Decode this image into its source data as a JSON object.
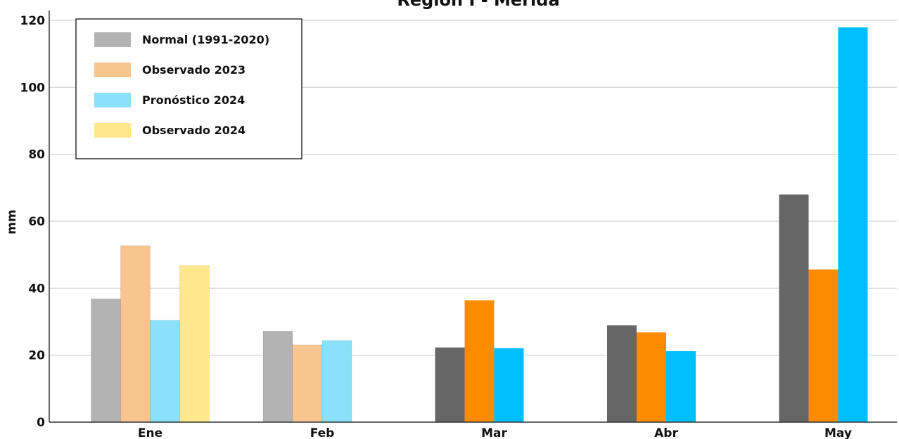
{
  "chart_data": {
    "type": "bar",
    "title": "Región I - Mérida",
    "ylabel": "mm",
    "xlabel": "",
    "ylim": [
      0,
      120
    ],
    "yticks": [
      0,
      20,
      40,
      60,
      80,
      100,
      120
    ],
    "grid": "horizontal",
    "legend_position": "top-left",
    "categories": [
      "Ene",
      "Feb",
      "Mar",
      "Abr",
      "May"
    ],
    "series": [
      {
        "name": "Normal (1991-2020)",
        "values": [
          36.8,
          27.2,
          22.3,
          28.9,
          68.0
        ],
        "color": "#666666",
        "legend_color": "#b3b3b3"
      },
      {
        "name": "Observado 2023",
        "values": [
          52.7,
          23.1,
          36.4,
          26.8,
          45.6
        ],
        "color": "#ff8c00",
        "legend_color": "#f9c58e"
      },
      {
        "name": "Pronóstico 2024",
        "values": [
          30.4,
          24.4,
          22.1,
          21.2,
          117.9
        ],
        "color": "#00bfff",
        "legend_color": "#8be0fa"
      },
      {
        "name": "Observado 2024",
        "values": [
          46.8,
          null,
          null,
          null,
          null
        ],
        "color": "#ffe88c",
        "legend_color": "#ffe88c"
      }
    ],
    "faded_categories": [
      "Ene",
      "Feb"
    ]
  }
}
